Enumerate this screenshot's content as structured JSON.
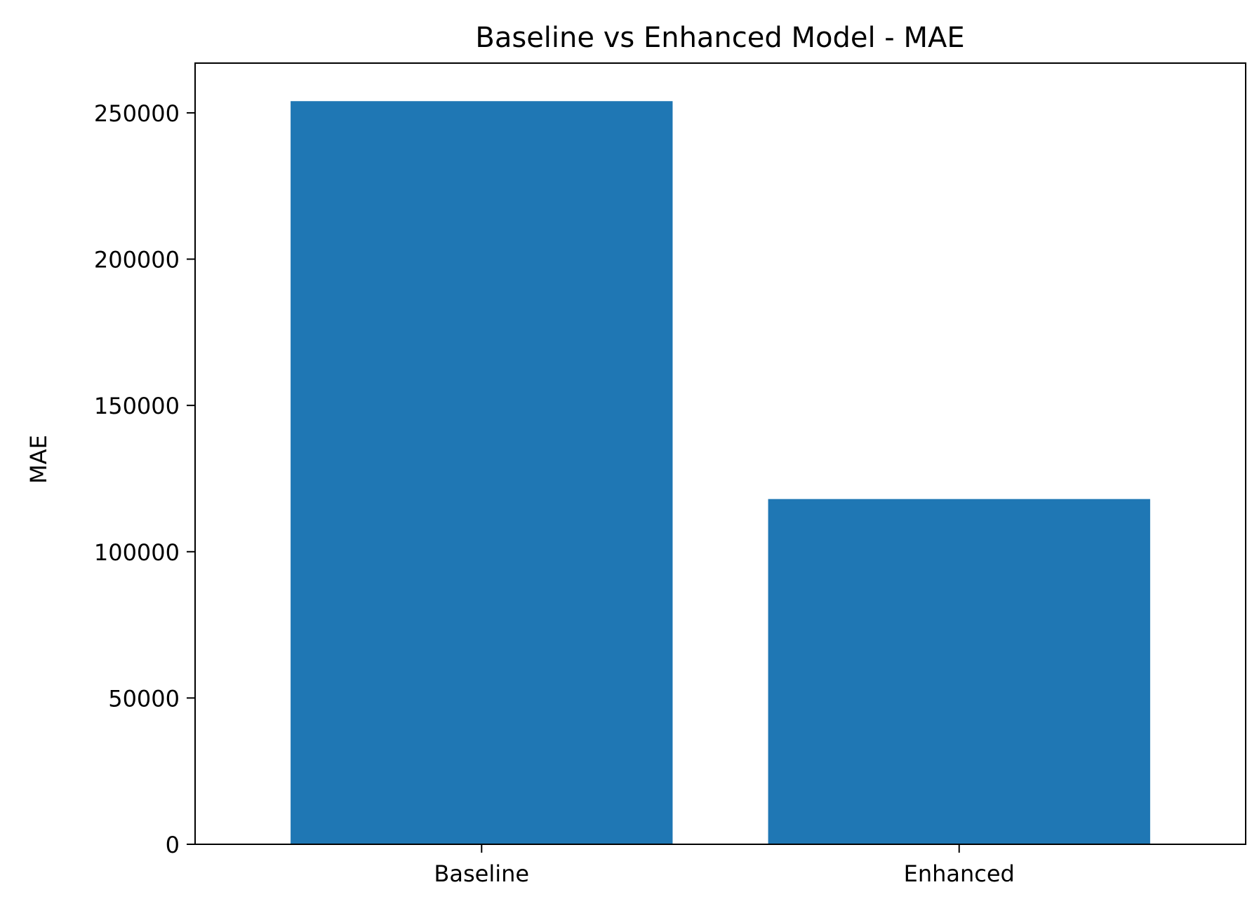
{
  "chart_data": {
    "type": "bar",
    "title": "Baseline vs Enhanced Model - MAE",
    "xlabel": "",
    "ylabel": "MAE",
    "categories": [
      "Baseline",
      "Enhanced"
    ],
    "values": [
      254000,
      118000
    ],
    "ylim": [
      0,
      267000
    ],
    "yticks": [
      0,
      50000,
      100000,
      150000,
      200000,
      250000
    ],
    "grid": false,
    "bar_color": "#1f77b4"
  }
}
